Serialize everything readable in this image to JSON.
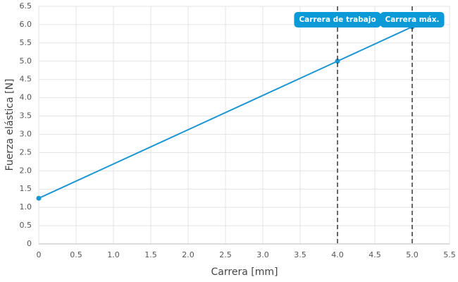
{
  "chart_data": {
    "type": "line",
    "x_label": "Carrera [mm]",
    "y_label": "Fuerza elástica [N]",
    "x": [
      0,
      4,
      5
    ],
    "values": [
      1.25,
      5.0,
      5.94
    ],
    "color": "#1b96d3",
    "xlim": [
      0,
      5.5
    ],
    "ylim": [
      0,
      6.5
    ],
    "xticks": [
      0,
      0.5,
      {
        "value": 1,
        "label": "1.0"
      },
      1.5,
      {
        "value": 2,
        "label": "2.0"
      },
      2.5,
      {
        "value": 3,
        "label": "3.0"
      },
      3.5,
      {
        "value": 4,
        "label": "4.0"
      },
      4.5,
      {
        "value": 5,
        "label": "5.0"
      },
      5.5
    ],
    "yticks": [
      0,
      0.5,
      {
        "value": 1,
        "label": "1.0"
      },
      1.5,
      {
        "value": 2,
        "label": "2.0"
      },
      2.5,
      {
        "value": 3,
        "label": "3.0"
      },
      3.5,
      {
        "value": 4,
        "label": "4.0"
      },
      4.5,
      {
        "value": 5,
        "label": "5.0"
      },
      5.5,
      {
        "value": 6,
        "label": "6.0"
      },
      6.5
    ],
    "grid": true,
    "annotations": [
      {
        "x": 4,
        "label": "Carrera de trabajo"
      },
      {
        "x": 5,
        "label": "Carrera máx."
      }
    ],
    "annotation_color": "#0a9ad8"
  }
}
